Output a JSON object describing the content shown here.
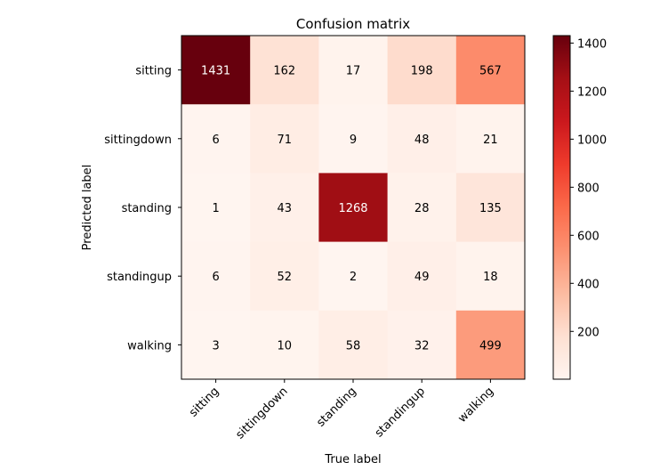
{
  "chart_data": {
    "type": "heatmap",
    "title": "Confusion matrix",
    "xlabel": "True label",
    "ylabel": "Predicted label",
    "x_categories": [
      "sitting",
      "sittingdown",
      "standing",
      "standingup",
      "walking"
    ],
    "y_categories": [
      "sitting",
      "sittingdown",
      "standing",
      "standingup",
      "walking"
    ],
    "values": [
      [
        1431,
        162,
        17,
        198,
        567
      ],
      [
        6,
        71,
        9,
        48,
        21
      ],
      [
        1,
        43,
        1268,
        28,
        135
      ],
      [
        6,
        52,
        2,
        49,
        18
      ],
      [
        3,
        10,
        58,
        32,
        499
      ]
    ],
    "colormap": "Reds",
    "colorbar": {
      "min": 1,
      "max": 1431,
      "ticks": [
        200,
        400,
        600,
        800,
        1000,
        1200,
        1400
      ]
    },
    "text_threshold": 715.5,
    "grid": false
  }
}
